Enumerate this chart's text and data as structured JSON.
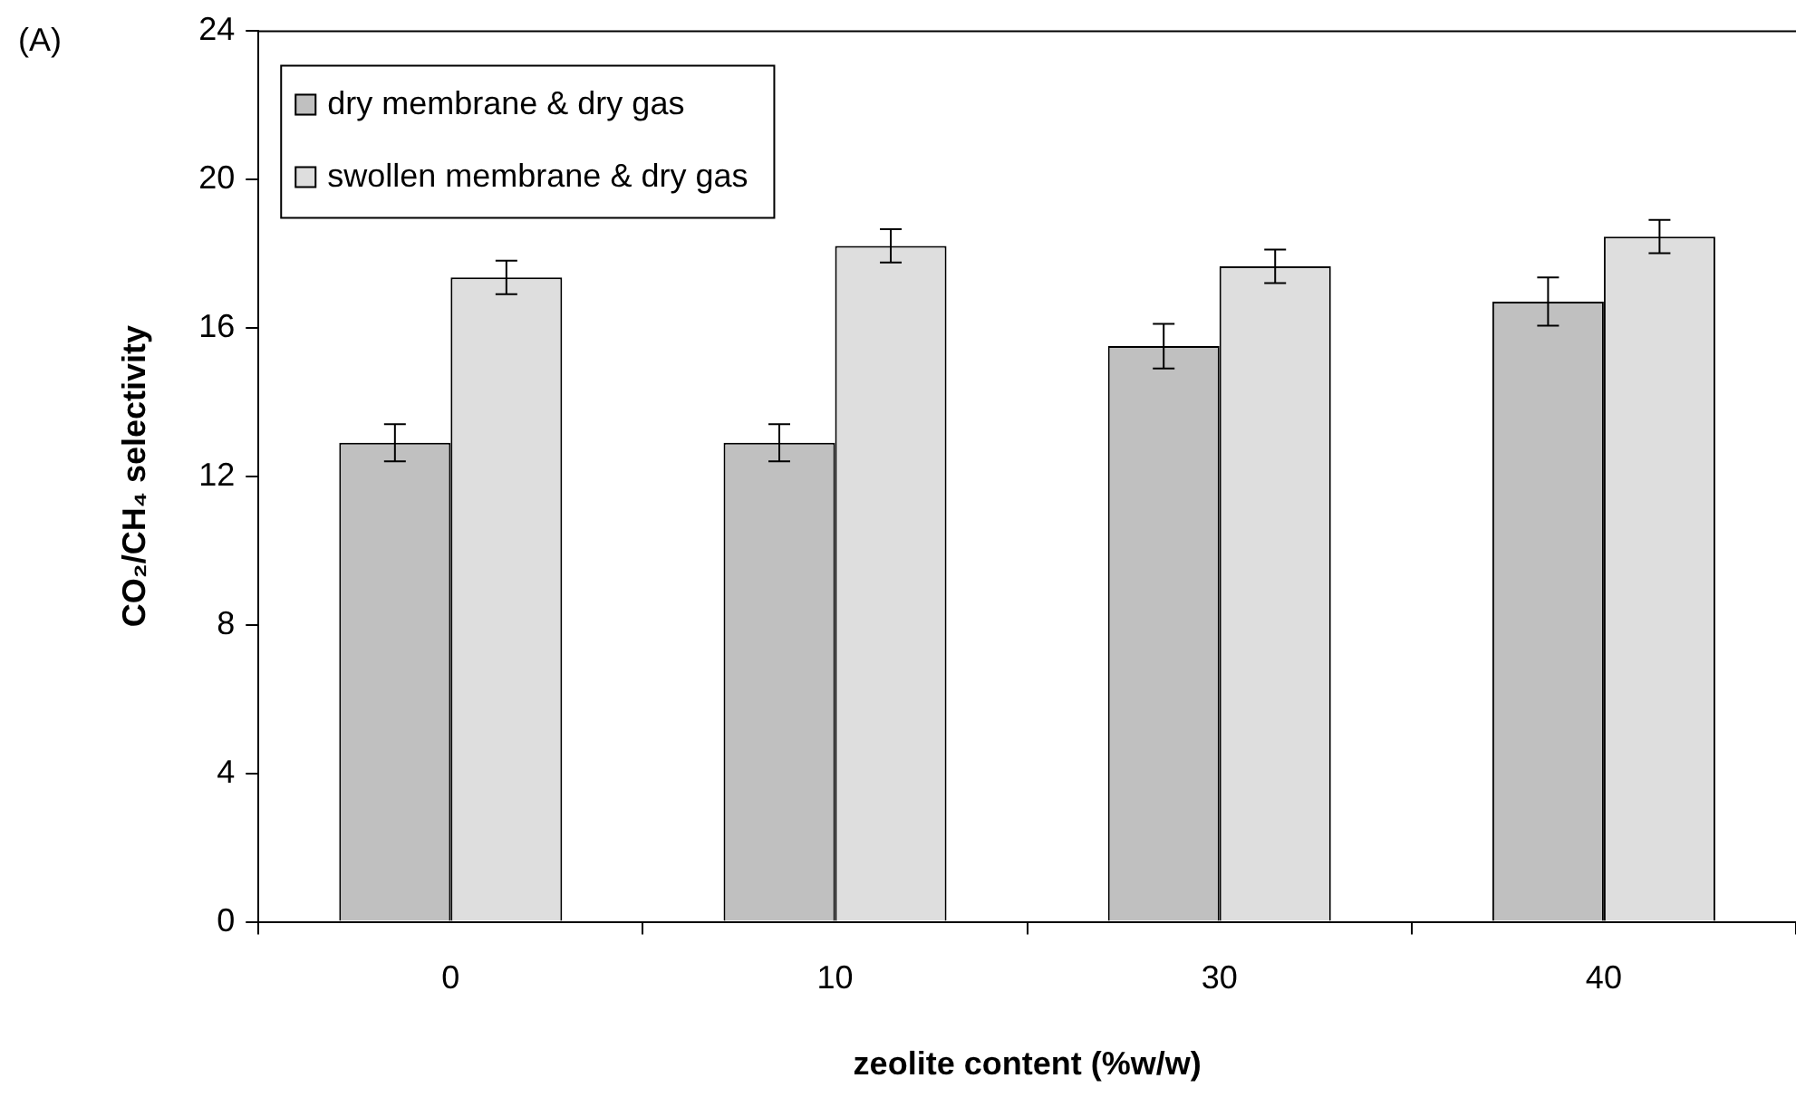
{
  "chart_data": {
    "type": "bar",
    "xlabel": "zeolite content (%w/w)",
    "ylabel": "CO₂/CH₄ selectivity",
    "annotations": [
      "(A)"
    ],
    "categories": [
      "0",
      "10",
      "30",
      "40"
    ],
    "series": [
      {
        "name": "dry membrane & dry gas",
        "color": "#c0c0c0",
        "values": [
          12.9,
          12.9,
          15.5,
          16.7
        ],
        "errors": [
          0.5,
          0.5,
          0.6,
          0.65
        ]
      },
      {
        "name": "swollen membrane & dry gas",
        "color": "#dedede",
        "values": [
          17.35,
          18.2,
          17.65,
          18.45
        ],
        "errors": [
          0.45,
          0.45,
          0.45,
          0.45
        ]
      }
    ],
    "ylim": [
      0,
      24
    ],
    "yticks": [
      0,
      4,
      8,
      12,
      16,
      20,
      24
    ],
    "grid": false,
    "legend": "top left"
  }
}
